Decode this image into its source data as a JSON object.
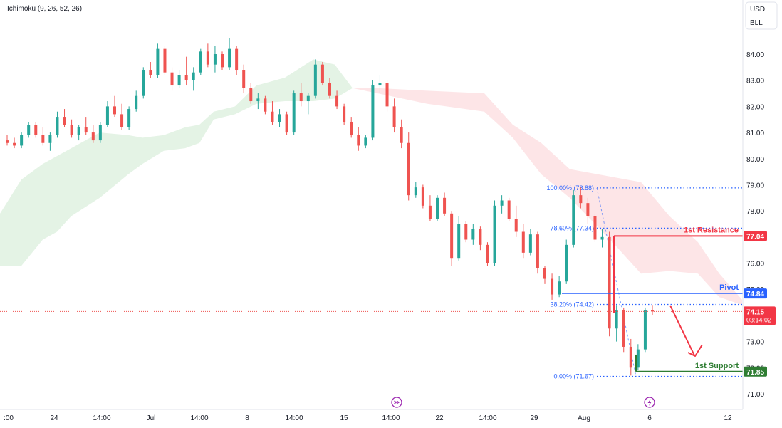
{
  "indicator_label": "Ichimoku (9, 26, 52, 26)",
  "currency": "USD",
  "unit": "BLL",
  "colors": {
    "up": "#26a69a",
    "down": "#ef5350",
    "green": "#2e7d32",
    "red": "#f23645",
    "blue": "#2962ff"
  },
  "chart_data": {
    "type": "candlestick",
    "y_axis": {
      "range": [
        70.6,
        85.1
      ],
      "ticks": [
        "84.00",
        "83.00",
        "82.00",
        "81.00",
        "80.00",
        "79.00",
        "78.00",
        "77.00",
        "76.00",
        "75.00",
        "74.00",
        "73.00",
        "72.00",
        "71.00"
      ]
    },
    "x_axis": {
      "ticks": [
        ":00",
        "24",
        "14:00",
        "Jul",
        "14:00",
        "8",
        "14:00",
        "15",
        "14:00",
        "22",
        "14:00",
        "29",
        "Aug",
        "6",
        "12"
      ]
    },
    "candles": [
      {
        "o": 80.7,
        "h": 80.9,
        "l": 80.5,
        "c": 80.6
      },
      {
        "o": 80.6,
        "h": 80.8,
        "l": 80.4,
        "c": 80.5
      },
      {
        "o": 80.5,
        "h": 81.0,
        "l": 80.4,
        "c": 80.9
      },
      {
        "o": 80.9,
        "h": 81.4,
        "l": 80.8,
        "c": 81.3
      },
      {
        "o": 81.3,
        "h": 81.4,
        "l": 80.8,
        "c": 80.9
      },
      {
        "o": 80.9,
        "h": 81.2,
        "l": 80.5,
        "c": 80.6
      },
      {
        "o": 80.6,
        "h": 81.0,
        "l": 80.3,
        "c": 80.9
      },
      {
        "o": 80.9,
        "h": 81.8,
        "l": 80.8,
        "c": 81.6
      },
      {
        "o": 81.6,
        "h": 81.9,
        "l": 81.2,
        "c": 81.3
      },
      {
        "o": 81.3,
        "h": 81.5,
        "l": 80.8,
        "c": 80.9
      },
      {
        "o": 80.9,
        "h": 81.3,
        "l": 80.7,
        "c": 81.2
      },
      {
        "o": 81.2,
        "h": 81.6,
        "l": 80.9,
        "c": 81.0
      },
      {
        "o": 81.0,
        "h": 81.3,
        "l": 80.6,
        "c": 80.7
      },
      {
        "o": 80.7,
        "h": 81.4,
        "l": 80.6,
        "c": 81.3
      },
      {
        "o": 81.3,
        "h": 82.2,
        "l": 81.2,
        "c": 82.0
      },
      {
        "o": 82.0,
        "h": 82.4,
        "l": 81.6,
        "c": 81.7
      },
      {
        "o": 81.7,
        "h": 82.1,
        "l": 81.1,
        "c": 81.2
      },
      {
        "o": 81.2,
        "h": 82.0,
        "l": 81.1,
        "c": 81.9
      },
      {
        "o": 81.9,
        "h": 82.6,
        "l": 81.8,
        "c": 82.4
      },
      {
        "o": 82.4,
        "h": 83.5,
        "l": 82.3,
        "c": 83.4
      },
      {
        "o": 83.4,
        "h": 83.7,
        "l": 83.1,
        "c": 83.2
      },
      {
        "o": 83.2,
        "h": 84.4,
        "l": 83.1,
        "c": 84.2
      },
      {
        "o": 84.2,
        "h": 84.3,
        "l": 83.2,
        "c": 83.3
      },
      {
        "o": 83.3,
        "h": 83.5,
        "l": 82.6,
        "c": 82.8
      },
      {
        "o": 82.8,
        "h": 83.4,
        "l": 82.7,
        "c": 83.2
      },
      {
        "o": 83.2,
        "h": 83.9,
        "l": 82.8,
        "c": 83.0
      },
      {
        "o": 83.0,
        "h": 83.5,
        "l": 82.6,
        "c": 83.3
      },
      {
        "o": 83.3,
        "h": 84.2,
        "l": 83.2,
        "c": 84.1
      },
      {
        "o": 84.1,
        "h": 84.4,
        "l": 83.5,
        "c": 83.6
      },
      {
        "o": 83.6,
        "h": 84.3,
        "l": 83.3,
        "c": 84.0
      },
      {
        "o": 84.0,
        "h": 84.1,
        "l": 83.4,
        "c": 83.5
      },
      {
        "o": 83.5,
        "h": 84.6,
        "l": 83.4,
        "c": 84.2
      },
      {
        "o": 84.2,
        "h": 84.3,
        "l": 83.2,
        "c": 83.4
      },
      {
        "o": 83.4,
        "h": 83.6,
        "l": 82.5,
        "c": 82.7
      },
      {
        "o": 82.7,
        "h": 82.9,
        "l": 82.1,
        "c": 82.2
      },
      {
        "o": 82.2,
        "h": 82.5,
        "l": 81.9,
        "c": 82.3
      },
      {
        "o": 82.3,
        "h": 82.4,
        "l": 81.7,
        "c": 81.8
      },
      {
        "o": 81.8,
        "h": 82.2,
        "l": 81.3,
        "c": 81.4
      },
      {
        "o": 81.4,
        "h": 81.9,
        "l": 81.2,
        "c": 81.7
      },
      {
        "o": 81.7,
        "h": 81.8,
        "l": 80.9,
        "c": 81.0
      },
      {
        "o": 81.0,
        "h": 82.6,
        "l": 80.9,
        "c": 82.5
      },
      {
        "o": 82.5,
        "h": 82.9,
        "l": 82.0,
        "c": 82.2
      },
      {
        "o": 82.2,
        "h": 82.5,
        "l": 81.7,
        "c": 82.4
      },
      {
        "o": 82.4,
        "h": 83.8,
        "l": 82.3,
        "c": 83.6
      },
      {
        "o": 83.6,
        "h": 83.7,
        "l": 82.8,
        "c": 82.9
      },
      {
        "o": 82.9,
        "h": 83.1,
        "l": 82.3,
        "c": 82.4
      },
      {
        "o": 82.4,
        "h": 82.6,
        "l": 81.9,
        "c": 82.0
      },
      {
        "o": 82.0,
        "h": 82.1,
        "l": 81.3,
        "c": 81.4
      },
      {
        "o": 81.4,
        "h": 81.6,
        "l": 80.8,
        "c": 80.9
      },
      {
        "o": 80.9,
        "h": 81.2,
        "l": 80.3,
        "c": 80.5
      },
      {
        "o": 80.5,
        "h": 80.9,
        "l": 80.4,
        "c": 80.8
      },
      {
        "o": 80.8,
        "h": 83.0,
        "l": 80.7,
        "c": 82.8
      },
      {
        "o": 82.8,
        "h": 83.2,
        "l": 82.5,
        "c": 82.9
      },
      {
        "o": 82.9,
        "h": 83.0,
        "l": 81.8,
        "c": 82.0
      },
      {
        "o": 82.0,
        "h": 82.3,
        "l": 81.0,
        "c": 81.2
      },
      {
        "o": 81.2,
        "h": 81.5,
        "l": 80.4,
        "c": 80.6
      },
      {
        "o": 80.6,
        "h": 81.0,
        "l": 78.4,
        "c": 78.6
      },
      {
        "o": 78.6,
        "h": 79.1,
        "l": 78.5,
        "c": 78.9
      },
      {
        "o": 78.9,
        "h": 79.0,
        "l": 78.1,
        "c": 78.2
      },
      {
        "o": 78.2,
        "h": 78.6,
        "l": 77.6,
        "c": 77.7
      },
      {
        "o": 77.7,
        "h": 78.6,
        "l": 77.6,
        "c": 78.5
      },
      {
        "o": 78.5,
        "h": 78.7,
        "l": 77.8,
        "c": 77.9
      },
      {
        "o": 77.9,
        "h": 78.0,
        "l": 75.9,
        "c": 76.2
      },
      {
        "o": 76.2,
        "h": 77.8,
        "l": 76.1,
        "c": 77.5
      },
      {
        "o": 77.5,
        "h": 77.6,
        "l": 76.8,
        "c": 76.9
      },
      {
        "o": 76.9,
        "h": 77.5,
        "l": 76.7,
        "c": 77.3
      },
      {
        "o": 77.3,
        "h": 77.4,
        "l": 76.5,
        "c": 76.7
      },
      {
        "o": 76.7,
        "h": 76.8,
        "l": 75.9,
        "c": 76.0
      },
      {
        "o": 76.0,
        "h": 78.4,
        "l": 75.9,
        "c": 78.2
      },
      {
        "o": 78.2,
        "h": 78.6,
        "l": 77.9,
        "c": 78.4
      },
      {
        "o": 78.4,
        "h": 78.5,
        "l": 77.6,
        "c": 77.7
      },
      {
        "o": 77.7,
        "h": 78.2,
        "l": 77.0,
        "c": 77.2
      },
      {
        "o": 77.2,
        "h": 77.5,
        "l": 76.2,
        "c": 76.4
      },
      {
        "o": 76.4,
        "h": 77.3,
        "l": 76.3,
        "c": 77.1
      },
      {
        "o": 77.1,
        "h": 77.2,
        "l": 75.6,
        "c": 75.8
      },
      {
        "o": 75.8,
        "h": 75.9,
        "l": 75.2,
        "c": 75.4
      },
      {
        "o": 75.4,
        "h": 75.6,
        "l": 74.6,
        "c": 74.8
      },
      {
        "o": 74.8,
        "h": 75.5,
        "l": 74.7,
        "c": 75.3
      },
      {
        "o": 75.3,
        "h": 76.9,
        "l": 75.2,
        "c": 76.7
      },
      {
        "o": 76.7,
        "h": 78.8,
        "l": 76.6,
        "c": 78.6
      },
      {
        "o": 78.6,
        "h": 78.9,
        "l": 78.1,
        "c": 78.3
      },
      {
        "o": 78.3,
        "h": 78.5,
        "l": 77.5,
        "c": 77.8
      },
      {
        "o": 77.8,
        "h": 77.9,
        "l": 76.8,
        "c": 76.9
      },
      {
        "o": 76.9,
        "h": 77.3,
        "l": 76.6,
        "c": 77.0
      },
      {
        "o": 77.0,
        "h": 77.2,
        "l": 73.2,
        "c": 73.5
      },
      {
        "o": 73.5,
        "h": 74.4,
        "l": 73.0,
        "c": 74.2
      },
      {
        "o": 74.2,
        "h": 74.3,
        "l": 72.6,
        "c": 72.8
      },
      {
        "o": 72.8,
        "h": 73.1,
        "l": 71.7,
        "c": 72.0
      },
      {
        "o": 72.0,
        "h": 72.9,
        "l": 71.9,
        "c": 72.7
      },
      {
        "o": 72.7,
        "h": 74.3,
        "l": 72.6,
        "c": 74.2
      },
      {
        "o": 74.2,
        "h": 74.4,
        "l": 74.0,
        "c": 74.15
      }
    ],
    "cloud_bull_top": [
      [
        0,
        77.9
      ],
      [
        30,
        79.2
      ],
      [
        60,
        79.8
      ],
      [
        80,
        80.1
      ],
      [
        100,
        80.4
      ],
      [
        140,
        81.0
      ],
      [
        180,
        80.9
      ],
      [
        200,
        80.8
      ],
      [
        230,
        80.9
      ],
      [
        260,
        81.2
      ],
      [
        280,
        81.3
      ],
      [
        300,
        81.8
      ],
      [
        330,
        82.0
      ],
      [
        360,
        82.8
      ],
      [
        400,
        83.1
      ],
      [
        440,
        83.8
      ],
      [
        470,
        83.6
      ],
      [
        495,
        82.7
      ]
    ],
    "cloud_bull_bottom": [
      [
        0,
        75.9
      ],
      [
        30,
        75.9
      ],
      [
        60,
        76.9
      ],
      [
        80,
        77.2
      ],
      [
        100,
        77.8
      ],
      [
        140,
        78.5
      ],
      [
        180,
        79.4
      ],
      [
        200,
        79.8
      ],
      [
        230,
        80.3
      ],
      [
        260,
        80.4
      ],
      [
        280,
        80.6
      ],
      [
        300,
        81.5
      ],
      [
        330,
        81.7
      ],
      [
        360,
        82.1
      ],
      [
        400,
        82.2
      ],
      [
        440,
        82.2
      ],
      [
        470,
        82.3
      ],
      [
        495,
        82.7
      ]
    ],
    "cloud_bear_top": [
      [
        495,
        82.7
      ],
      [
        530,
        82.7
      ],
      [
        600,
        82.6
      ],
      [
        680,
        82.5
      ],
      [
        720,
        81.3
      ],
      [
        760,
        80.6
      ],
      [
        800,
        79.6
      ],
      [
        860,
        79.3
      ],
      [
        900,
        79.1
      ],
      [
        940,
        77.8
      ],
      [
        980,
        76.8
      ],
      [
        1010,
        75.6
      ],
      [
        1042,
        74.6
      ]
    ],
    "cloud_bear_bottom": [
      [
        495,
        82.7
      ],
      [
        530,
        82.5
      ],
      [
        600,
        82.1
      ],
      [
        680,
        81.8
      ],
      [
        720,
        80.8
      ],
      [
        760,
        79.4
      ],
      [
        800,
        78.5
      ],
      [
        860,
        76.8
      ],
      [
        900,
        75.6
      ],
      [
        940,
        75.7
      ],
      [
        980,
        75.6
      ],
      [
        1010,
        74.7
      ],
      [
        1042,
        74.4
      ]
    ],
    "fib_levels": [
      {
        "label": "100.00% (78.88)",
        "value": 78.88
      },
      {
        "label": "78.60% (77.34)",
        "value": 77.34
      },
      {
        "label": "38.20% (74.42)",
        "value": 74.42
      },
      {
        "label": "0.00% (71.67)",
        "value": 71.67
      }
    ],
    "levels": [
      {
        "name": "1st Resistance",
        "value": 77.04,
        "tag": "77.04",
        "color": "#f23645"
      },
      {
        "name": "Pivot",
        "value": 74.84,
        "tag": "74.84",
        "color": "#2962ff"
      },
      {
        "name": "1st Support",
        "value": 71.85,
        "tag": "71.85",
        "color": "#2e7d32"
      }
    ],
    "current_price": {
      "value": 74.15,
      "tag": "74.15",
      "countdown": "03:14:02"
    }
  }
}
